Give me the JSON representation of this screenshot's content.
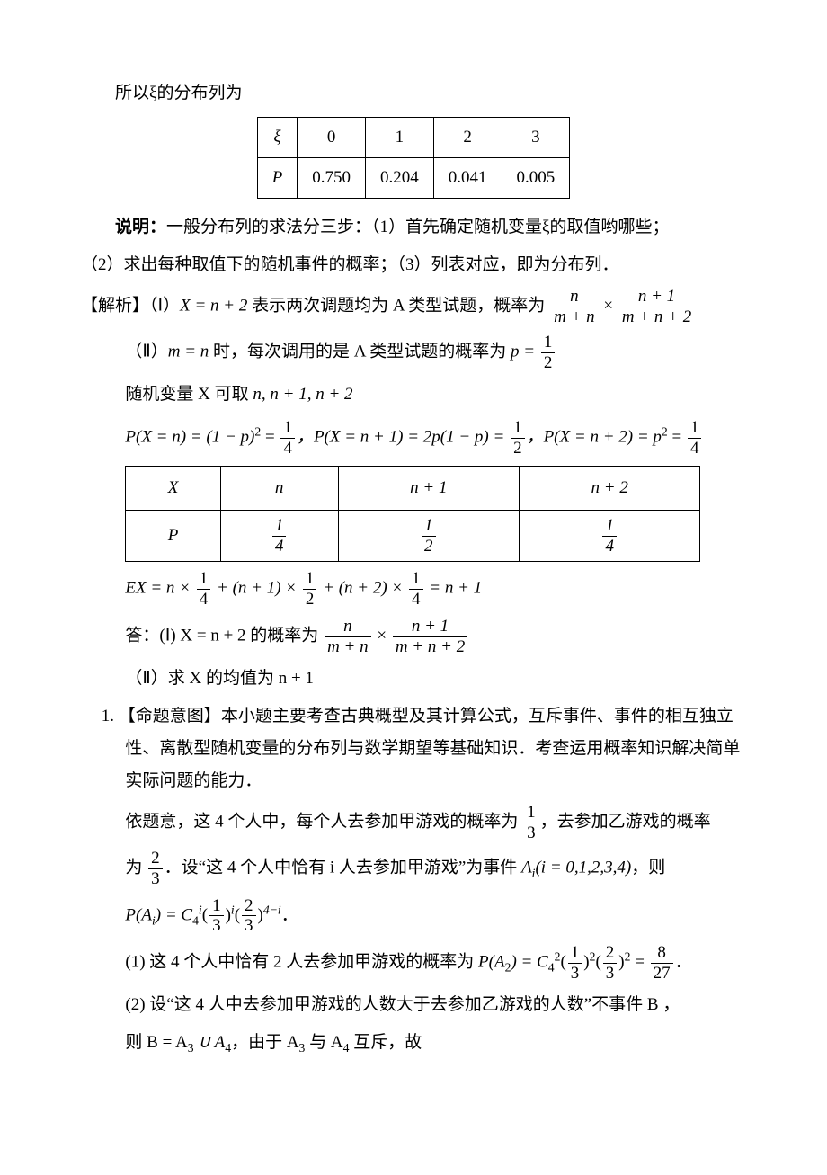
{
  "intro_line": "所以ξ的分布列为",
  "table1": {
    "row1": [
      "ξ",
      "0",
      "1",
      "2",
      "3"
    ],
    "row2": [
      "P",
      "0.750",
      "0.204",
      "0.041",
      "0.005"
    ]
  },
  "shuoming_label": "说明：",
  "shuoming_body1": "一般分布列的求法分三步：（1）首先确定随机变量ξ的取值哟哪些；",
  "shuoming_body2": "（2）求出每种取值下的随机事件的概率；（3）列表对应，即为分布列．",
  "jiexi_label": "【解析】",
  "jiexi_I_pre": "（Ⅰ）",
  "jiexi_I_eq1": "X = n + 2",
  "jiexi_I_mid": "表示两次调题均为 A 类型试题，概率为",
  "frac1_num": "n",
  "frac1_den": "m + n",
  "frac2_num": "n + 1",
  "frac2_den": "m + n + 2",
  "jiexi_II_pre": "（Ⅱ）",
  "jiexi_II_cond": "m = n",
  "jiexi_II_mid1": "时，每次调用的是 A 类型试题的概率为",
  "p_eq": "p =",
  "half_num": "1",
  "half_den": "2",
  "rand_var_pre": "随机变量 X 可取",
  "rand_var_vals": "n, n + 1, n + 2",
  "pxn": "P(X = n) = (1 − p)",
  "pxn_sup": "2",
  "eq_q1": " = ",
  "q1_num": "1",
  "q1_den": "4",
  "pxn1": "，P(X = n + 1) = 2p(1 − p) = ",
  "q2_num": "1",
  "q2_den": "2",
  "pxn2": "，P(X = n + 2) = p",
  "pxn2_sup": "2",
  "q3_num": "1",
  "q3_den": "4",
  "table2": {
    "r1": [
      "X",
      "n",
      "n + 1",
      "n + 2"
    ],
    "r2_label": "P",
    "r2_f1_num": "1",
    "r2_f1_den": "4",
    "r2_f2_num": "1",
    "r2_f2_den": "2",
    "r2_f3_num": "1",
    "r2_f3_den": "4"
  },
  "ex_pre": "EX = n ×",
  "ex_f1_num": "1",
  "ex_f1_den": "4",
  "ex_mid1": " + (n + 1) ×",
  "ex_f2_num": "1",
  "ex_f2_den": "2",
  "ex_mid2": " + (n + 2) ×",
  "ex_f3_num": "1",
  "ex_f3_den": "4",
  "ex_end": " = n + 1",
  "ans_pre": "答：(Ⅰ) X = n + 2 的概率为",
  "ans_II": "（Ⅱ）求 X 的均值为 n + 1",
  "q1_label": "1.",
  "mingti_label": "【命题意图】",
  "mingti_body": "本小题主要考查古典概型及其计算公式，互斥事件、事件的相互独立性、离散型随机变量的分布列与数学期望等基础知识．考查运用概率知识解决简单实际问题的能力．",
  "yiti_l1": "依题意，这 4 个人中，每个人去参加甲游戏的概率为",
  "one3_num": "1",
  "one3_den": "3",
  "yiti_l1_end": "，去参加乙游戏的概率",
  "yiti_l2_pre": "为",
  "two3_num": "2",
  "two3_den": "3",
  "yiti_l2_mid": "．设“这 4 个人中恰有 i 人去参加甲游戏”为事件 ",
  "Ai": "A",
  "Ai_sub": "i",
  "yiti_l2_paren": "(i = 0,1,2,3,4)",
  "yiti_l2_end": "，则",
  "PAi_pre": "P(A",
  "PAi_sub": "i",
  "PAi_mid": ") = C",
  "C4": "4",
  "Ci": "i",
  "PAi_f1_num": "1",
  "PAi_f1_den": "3",
  "PAi_exp1": "i",
  "PAi_f2_num": "2",
  "PAi_f2_den": "3",
  "PAi_exp2": "4−i",
  "PAi_end": "．",
  "part1_pre": "(1) 这 4 个人中恰有 2 人去参加甲游戏的概率为 ",
  "PA2_pre": "P(A",
  "PA2_sub": "2",
  "PA2_mid": ") = C",
  "PA2_C4": "4",
  "PA2_C2": "2",
  "PA2_f1_num": "1",
  "PA2_f1_den": "3",
  "PA2_e1": "2",
  "PA2_f2_num": "2",
  "PA2_f2_den": "3",
  "PA2_e2": "2",
  "PA2_res_num": "8",
  "PA2_res_den": "27",
  "PA2_end": "．",
  "part2_l1": "(2) 设“这 4 人中去参加甲游戏的人数大于去参加乙游戏的人数”不事件 B ，",
  "part2_l2_pre": "则 B = A",
  "A3_sub": "3",
  "cup": " ∪ A",
  "A4_sub": "4",
  "part2_l2_mid": "，由于 A",
  "part2_l2_mid2": " 与 A",
  "part2_l2_end": " 互斥，故"
}
